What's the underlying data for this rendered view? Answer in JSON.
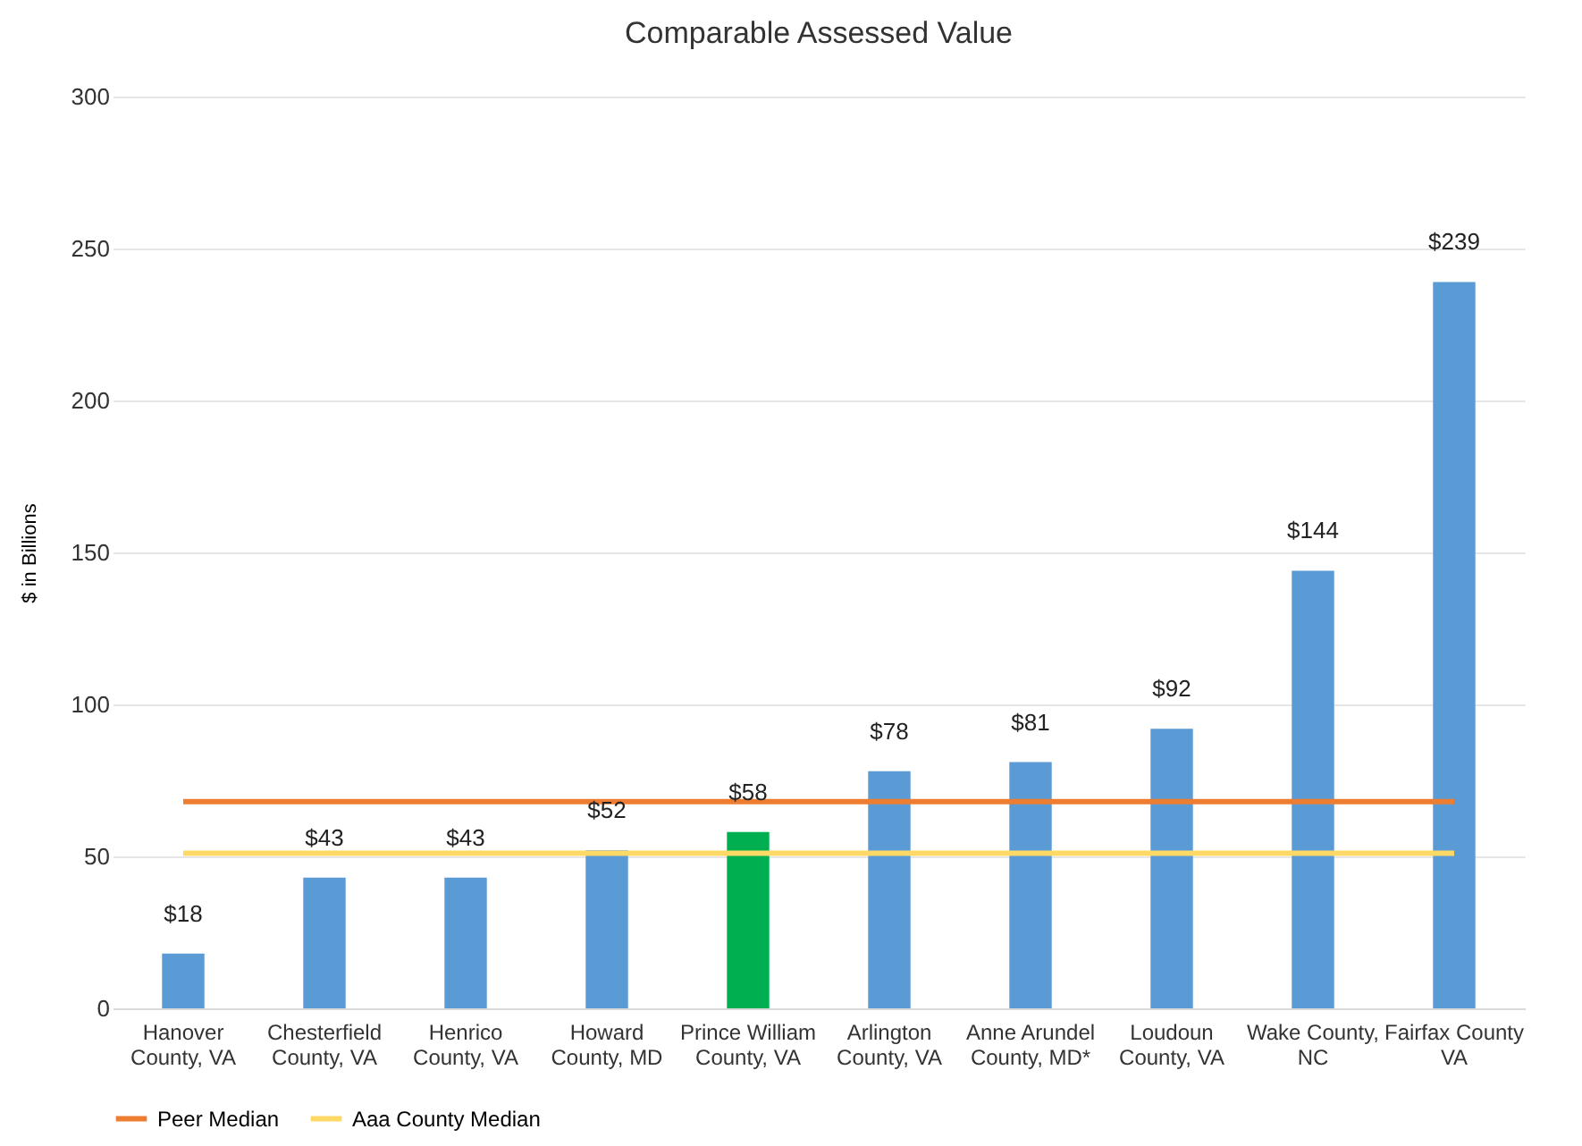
{
  "chart_data": {
    "type": "bar",
    "title": "Comparable Assessed  Value",
    "ylabel": "$ in Billions",
    "categories": [
      "Hanover County, VA",
      "Chesterfield County, VA",
      "Henrico County, VA",
      "Howard County, MD",
      "Prince William County, VA",
      "Arlington County, VA",
      "Anne Arundel County, MD*",
      "Loudoun County, VA",
      "Wake County, NC",
      "Fairfax County VA"
    ],
    "series": [
      {
        "values": [
          18,
          43,
          43,
          52,
          58,
          78,
          81,
          92,
          144,
          239
        ],
        "colors": [
          "#5b9bd5",
          "#5b9bd5",
          "#5b9bd5",
          "#5b9bd5",
          "#00b050",
          "#5b9bd5",
          "#5b9bd5",
          "#5b9bd5",
          "#5b9bd5",
          "#5b9bd5"
        ],
        "value_labels": [
          "$18",
          "$43",
          "$43",
          "$52",
          "$58",
          "$78",
          "$81",
          "$92",
          "$144",
          "$239"
        ]
      },
      {
        "type": "line",
        "name": "Peer Median",
        "color": "#ed7d31",
        "values": [
          68,
          68,
          68,
          68,
          68,
          68,
          68,
          68,
          68,
          68
        ]
      },
      {
        "type": "line",
        "name": "Aaa County Median",
        "color": "#ffd966",
        "values": [
          51,
          51,
          51,
          51,
          51,
          51,
          51,
          51,
          51,
          51
        ]
      }
    ],
    "ylim": [
      0,
      300
    ],
    "yticks": [
      0,
      50,
      100,
      150,
      200,
      250,
      300
    ],
    "grid": "y",
    "legend": "bottom"
  }
}
